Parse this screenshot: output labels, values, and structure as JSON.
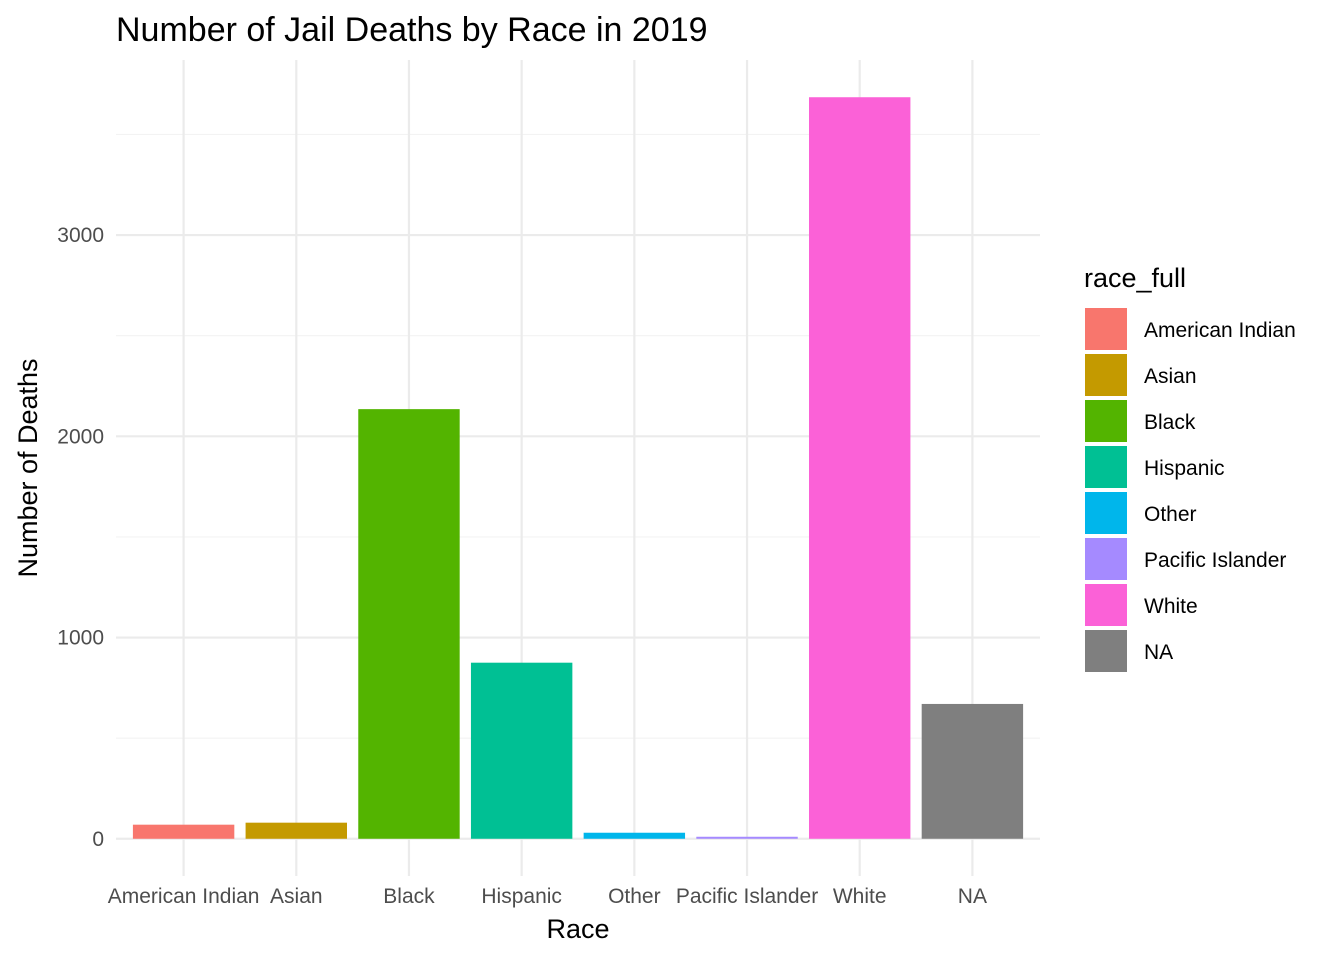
{
  "chart_data": {
    "type": "bar",
    "title": "Number of Jail Deaths by Race in 2019",
    "xlabel": "Race",
    "ylabel": "Number of Deaths",
    "categories": [
      "American Indian",
      "Asian",
      "Black",
      "Hispanic",
      "Other",
      "Pacific Islander",
      "White",
      "NA"
    ],
    "values": [
      70,
      80,
      2135,
      875,
      30,
      10,
      3685,
      670
    ],
    "colors": [
      "#F8766D",
      "#C49A00",
      "#53B400",
      "#00C094",
      "#00B6EB",
      "#A58AFF",
      "#FB61D7",
      "#7F7F7F"
    ],
    "ylim": [
      -185,
      3870
    ],
    "yticks": [
      0,
      1000,
      2000,
      3000
    ],
    "grid": true,
    "legend": {
      "title": "race_full",
      "position": "right",
      "entries": [
        "American Indian",
        "Asian",
        "Black",
        "Hispanic",
        "Other",
        "Pacific Islander",
        "White",
        "NA"
      ]
    }
  }
}
